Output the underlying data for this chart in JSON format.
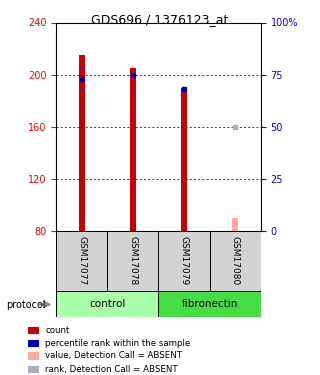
{
  "title": "GDS696 / 1376123_at",
  "samples": [
    "GSM17077",
    "GSM17078",
    "GSM17079",
    "GSM17080"
  ],
  "count_values": [
    215,
    205,
    190,
    null
  ],
  "count_absent": [
    null,
    null,
    null,
    90
  ],
  "rank_values": [
    73,
    75,
    68,
    null
  ],
  "rank_absent": [
    null,
    null,
    null,
    50
  ],
  "ylim_left": [
    80,
    240
  ],
  "ylim_right": [
    0,
    100
  ],
  "yticks_left": [
    80,
    120,
    160,
    200,
    240
  ],
  "yticks_right": [
    0,
    25,
    50,
    75,
    100
  ],
  "ytick_labels_right": [
    "0",
    "25",
    "50",
    "75",
    "100%"
  ],
  "bar_color_present": "#cc0000",
  "bar_color_absent": "#ffaaaa",
  "dot_color_present": "#0000cc",
  "dot_color_absent": "#aaaacc",
  "bar_width": 0.12,
  "groups": [
    {
      "label": "control",
      "samples": [
        0,
        1
      ],
      "color": "#aaffaa"
    },
    {
      "label": "fibronectin",
      "samples": [
        2,
        3
      ],
      "color": "#44dd44"
    }
  ],
  "protocol_label": "protocol",
  "legend_items": [
    {
      "color": "#cc0000",
      "label": "count"
    },
    {
      "color": "#0000cc",
      "label": "percentile rank within the sample"
    },
    {
      "color": "#ffaaaa",
      "label": "value, Detection Call = ABSENT"
    },
    {
      "color": "#aaaacc",
      "label": "rank, Detection Call = ABSENT"
    }
  ],
  "background_color": "#ffffff"
}
